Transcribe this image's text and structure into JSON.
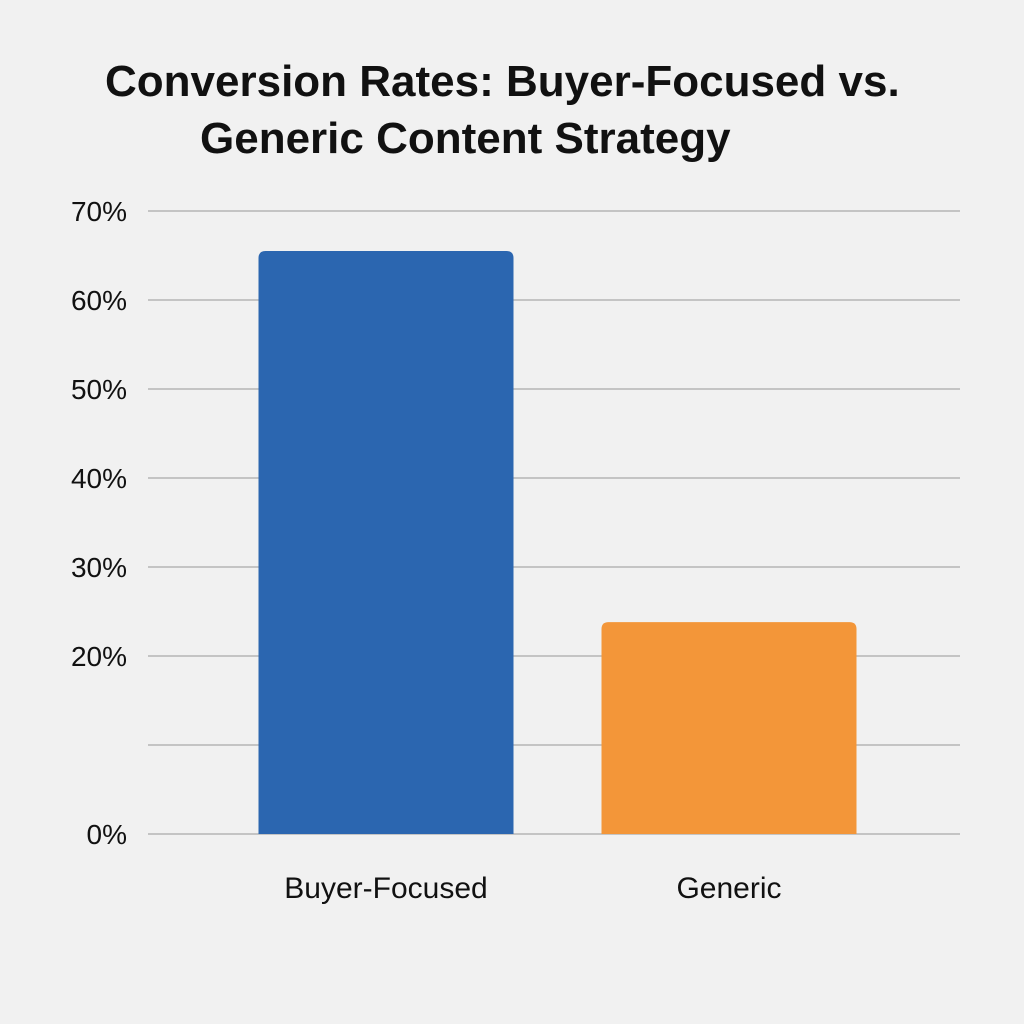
{
  "chart_data": {
    "type": "bar",
    "title_lines": [
      "Conversion Rates: Buyer-Focused vs.",
      "Generic Content Strategy"
    ],
    "categories": [
      "Buyer-Focused",
      "Generic"
    ],
    "values": [
      65.5,
      23.8
    ],
    "value_unit": "%",
    "colors": [
      "#2b66b0",
      "#f39639"
    ],
    "ylim": [
      0,
      70
    ],
    "yticks": [
      0,
      10,
      20,
      30,
      40,
      50,
      60,
      70
    ],
    "ytick_labels": [
      "0%",
      "",
      "20%",
      "30%",
      "40%",
      "50%",
      "60%",
      "70%"
    ],
    "grid": true,
    "xlabel": "",
    "ylabel": ""
  }
}
